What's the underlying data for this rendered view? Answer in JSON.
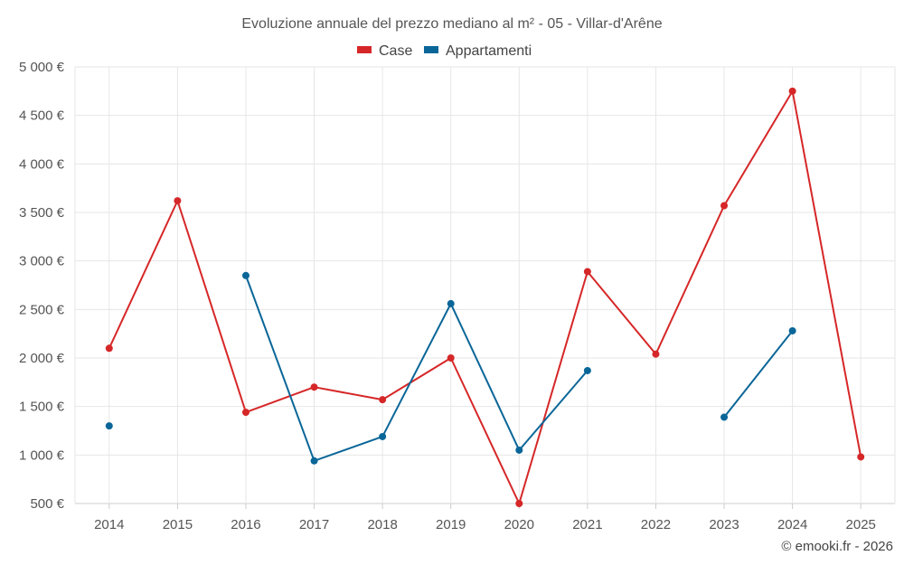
{
  "chart_data": {
    "type": "line",
    "title": "Evoluzione annuale del prezzo mediano al m² - 05 - Villar-d'Arêne",
    "categories": [
      "2014",
      "2015",
      "2016",
      "2017",
      "2018",
      "2019",
      "2020",
      "2021",
      "2022",
      "2023",
      "2024",
      "2025"
    ],
    "ylim": [
      500,
      5000
    ],
    "yticks": [
      500,
      1000,
      1500,
      2000,
      2500,
      3000,
      3500,
      4000,
      4500,
      5000
    ],
    "ytick_labels": [
      "500 €",
      "1 000 €",
      "1 500 €",
      "2 000 €",
      "2 500 €",
      "3 000 €",
      "3 500 €",
      "4 000 €",
      "4 500 €",
      "5 000 €"
    ],
    "series": [
      {
        "name": "Case",
        "color": "#d62728",
        "values": [
          2100,
          3620,
          1440,
          1700,
          1570,
          2000,
          500,
          2890,
          2040,
          3570,
          4750,
          980
        ]
      },
      {
        "name": "Appartamenti",
        "color": "#0a6698",
        "values": [
          1300,
          null,
          2850,
          940,
          1190,
          2560,
          1050,
          1870,
          null,
          1390,
          2280,
          null
        ]
      }
    ],
    "grid": true,
    "legend_position": "top-center",
    "credit": "© emooki.fr - 2026"
  }
}
